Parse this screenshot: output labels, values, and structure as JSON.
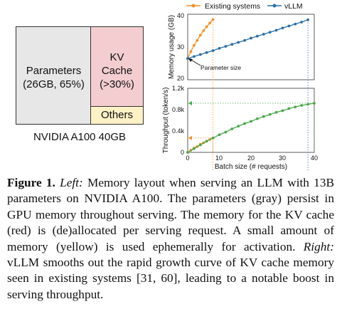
{
  "left_figure": {
    "parameters_label": "Parameters",
    "parameters_detail": "(26GB, 65%)",
    "kv_label": "KV",
    "kv_label2": "Cache",
    "kv_detail": "(>30%)",
    "others_label": "Others",
    "gpu_label": "NVIDIA A100 40GB"
  },
  "legend": {
    "existing": "Existing systems",
    "vllm": "vLLM"
  },
  "colors": {
    "existing": "#f0922b",
    "vllm": "#2b6fa6",
    "throughput_vllm": "#4aa84a",
    "parameters": "#e7e7e7",
    "kv_cache": "#f3cdd0",
    "others": "#fdf1c6"
  },
  "chart_data": [
    {
      "type": "line",
      "ylabel": "Memory usage (GB)",
      "yticks": [
        "20",
        "30",
        "40"
      ],
      "ylim": [
        20,
        40
      ],
      "xlim": [
        0,
        40
      ],
      "annotation": "Parameter size",
      "series": [
        {
          "name": "Existing systems",
          "x": [
            0,
            1,
            2,
            3,
            4,
            5,
            6,
            7,
            8
          ],
          "y": [
            26.5,
            28.6,
            30.5,
            32.0,
            33.6,
            35.0,
            36.2,
            37.3,
            38.4
          ]
        },
        {
          "name": "vLLM",
          "x": [
            0,
            2,
            4,
            6,
            8,
            10,
            12,
            14,
            16,
            18,
            20,
            22,
            24,
            26,
            28,
            30,
            32,
            34,
            36,
            38
          ],
          "y": [
            26.5,
            27.1,
            27.7,
            28.3,
            28.9,
            29.6,
            30.2,
            30.8,
            31.4,
            32.0,
            32.7,
            33.3,
            33.9,
            34.5,
            35.1,
            35.8,
            36.4,
            37.0,
            37.6,
            38.3
          ]
        }
      ]
    },
    {
      "type": "line",
      "ylabel": "Throughput (token/s)",
      "xlabel": "Batch size (# requests)",
      "yticks": [
        "0",
        "0.4k",
        "0.8k",
        "1.2k"
      ],
      "xticks": [
        "0",
        "10",
        "20",
        "30",
        "40"
      ],
      "ylim": [
        0,
        1.2
      ],
      "xlim": [
        0,
        40
      ],
      "series": [
        {
          "name": "Existing systems",
          "x": [
            0,
            1,
            2,
            3,
            4,
            5,
            6,
            7,
            8
          ],
          "y": [
            0.0,
            0.04,
            0.08,
            0.11,
            0.15,
            0.18,
            0.21,
            0.24,
            0.27
          ]
        },
        {
          "name": "vLLM",
          "x": [
            0,
            2,
            4,
            6,
            8,
            10,
            12,
            14,
            16,
            18,
            20,
            22,
            24,
            26,
            28,
            30,
            32,
            34,
            36,
            38,
            40
          ],
          "y": [
            0.0,
            0.07,
            0.14,
            0.21,
            0.27,
            0.33,
            0.38,
            0.44,
            0.49,
            0.54,
            0.58,
            0.63,
            0.67,
            0.71,
            0.75,
            0.78,
            0.82,
            0.85,
            0.88,
            0.9,
            0.92
          ]
        }
      ]
    }
  ],
  "caption": {
    "label": "Figure 1.",
    "left_word": "Left:",
    "text1": " Memory layout when serving an LLM with 13B parameters on NVIDIA A100. The parameters (gray) persist in GPU memory throughout serving. The memory for the KV cache (red) is (de)allocated per serving request. A small amount of memory (yellow) is used ephemerally for activation. ",
    "right_word": "Right:",
    "text2": " vLLM smooths out the rapid growth curve of KV cache memory seen in existing systems [31, 60], leading to a notable boost in serving throughput."
  }
}
